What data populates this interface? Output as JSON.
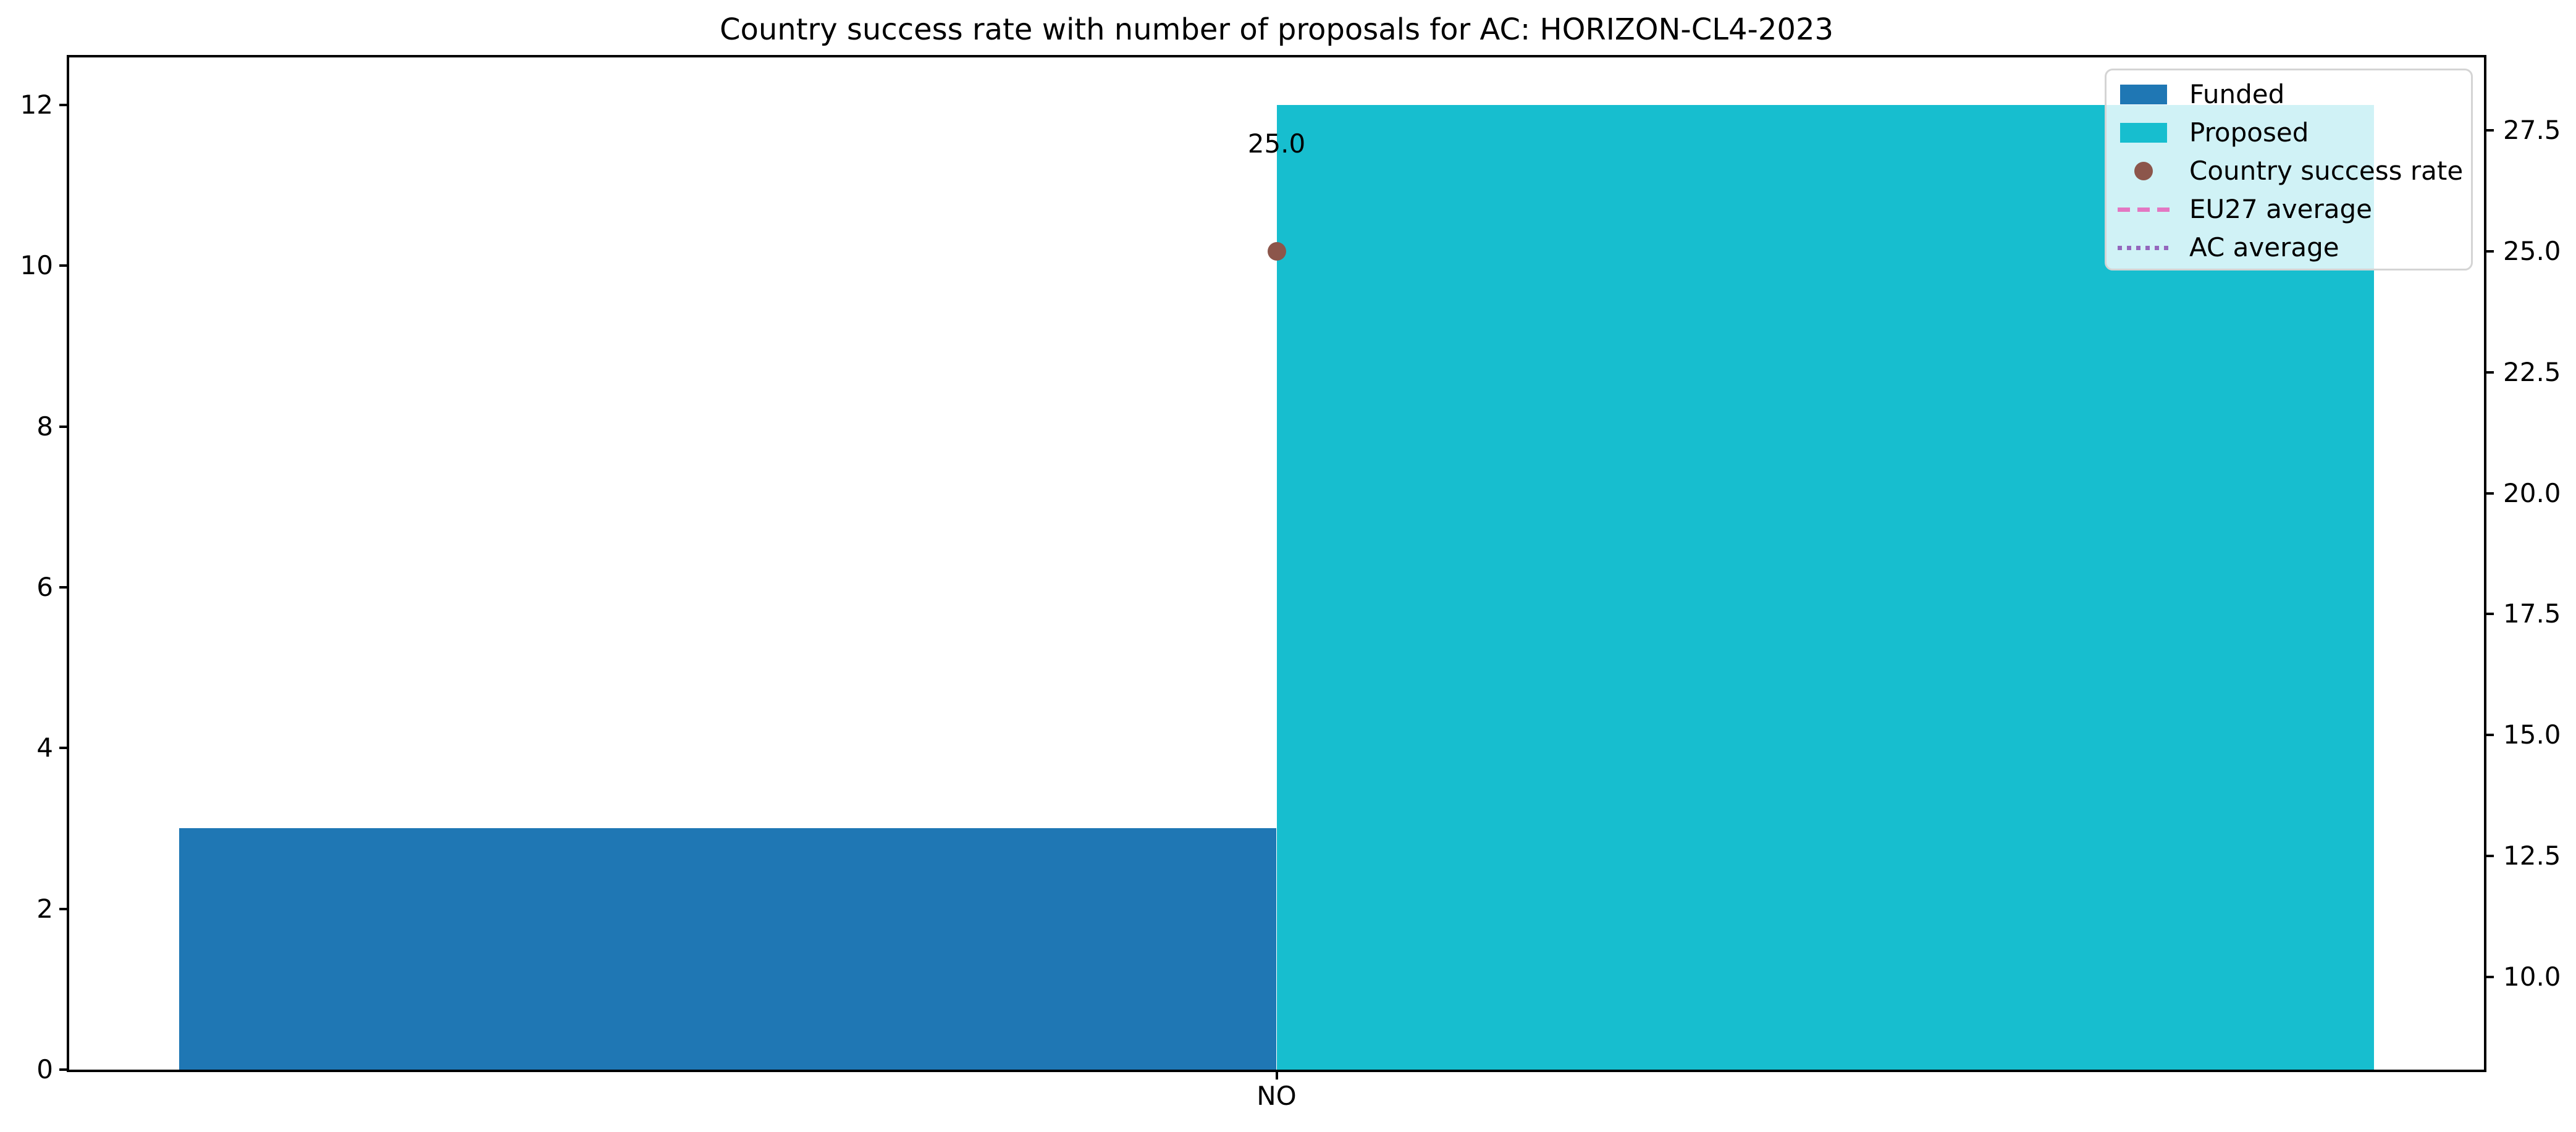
{
  "chart_data": {
    "type": "bar",
    "title": "Country success rate with number of proposals for AC: HORIZON-CL4-2023",
    "categories": [
      "NO"
    ],
    "series": [
      {
        "name": "Funded",
        "values": [
          3
        ],
        "color": "#1f77b4",
        "axis": "left"
      },
      {
        "name": "Proposed",
        "values": [
          12
        ],
        "color": "#17becf",
        "axis": "left"
      }
    ],
    "points": [
      {
        "name": "Country success rate",
        "category": "NO",
        "value": 25.0,
        "label": "25.0",
        "color": "#8c564b",
        "axis": "right"
      }
    ],
    "reference_lines": [
      {
        "name": "EU27 average",
        "style": "dashed",
        "color": "#e377c2",
        "visible_in_plot": false
      },
      {
        "name": "AC average",
        "style": "dotted",
        "color": "#9467bd",
        "visible_in_plot": false
      }
    ],
    "left_axis": {
      "range": [
        0,
        12.59
      ],
      "ticks": [
        {
          "value": 0,
          "label": "0"
        },
        {
          "value": 2,
          "label": "2"
        },
        {
          "value": 4,
          "label": "4"
        },
        {
          "value": 6,
          "label": "6"
        },
        {
          "value": 8,
          "label": "8"
        },
        {
          "value": 10,
          "label": "10"
        },
        {
          "value": 12,
          "label": "12"
        }
      ]
    },
    "right_axis": {
      "range": [
        8.08,
        29.01
      ],
      "ticks": [
        {
          "value": 10.0,
          "label": "10.0"
        },
        {
          "value": 12.5,
          "label": "12.5"
        },
        {
          "value": 15.0,
          "label": "15.0"
        },
        {
          "value": 17.5,
          "label": "17.5"
        },
        {
          "value": 20.0,
          "label": "20.0"
        },
        {
          "value": 22.5,
          "label": "22.5"
        },
        {
          "value": 25.0,
          "label": "25.0"
        },
        {
          "value": 27.5,
          "label": "27.5"
        }
      ]
    },
    "legend": {
      "position": "upper right",
      "items": [
        {
          "label": "Funded",
          "handle": "patch",
          "color": "#1f77b4"
        },
        {
          "label": "Proposed",
          "handle": "patch",
          "color": "#17becf"
        },
        {
          "label": "Country success rate",
          "handle": "marker",
          "color": "#8c564b"
        },
        {
          "label": "EU27 average",
          "handle": "dashed-line",
          "color": "#e377c2"
        },
        {
          "label": "AC average",
          "handle": "dotted-line",
          "color": "#9467bd"
        }
      ]
    },
    "grid": false,
    "xlabel": "",
    "ylabel": ""
  }
}
